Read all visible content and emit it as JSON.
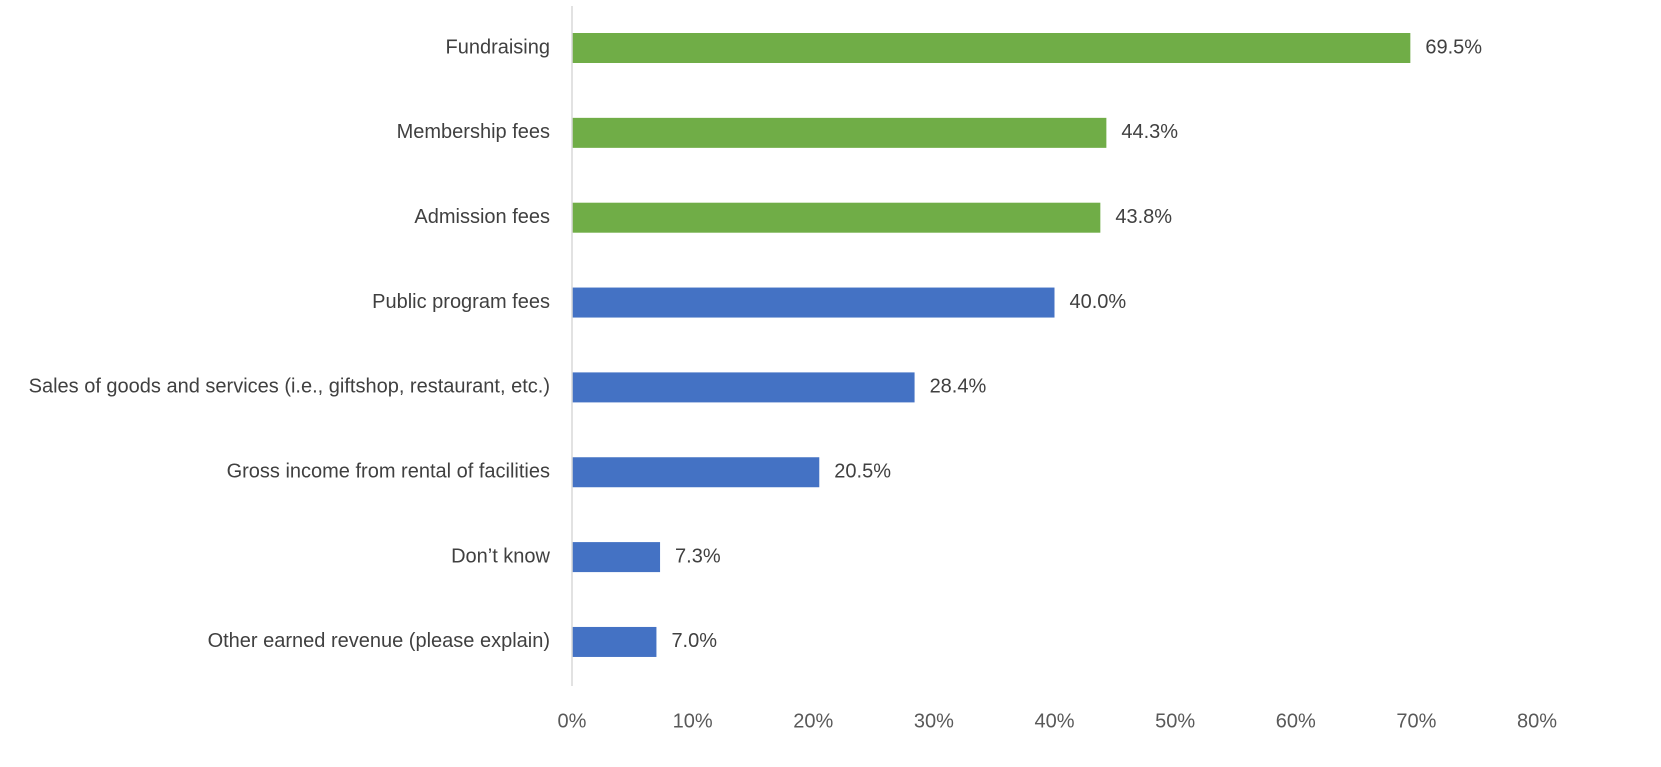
{
  "chart_data": {
    "type": "bar",
    "orientation": "horizontal",
    "title": "",
    "xlabel": "",
    "ylabel": "",
    "xlim": [
      0,
      80
    ],
    "x_ticks": [
      "0%",
      "10%",
      "20%",
      "30%",
      "40%",
      "50%",
      "60%",
      "70%",
      "80%"
    ],
    "grid": false,
    "legend": "none",
    "colors": {
      "green": "#70AD47",
      "blue": "#4472C4"
    },
    "bars": [
      {
        "label": "Fundraising",
        "value": 69.5,
        "value_label": "69.5%",
        "color": "#70AD47"
      },
      {
        "label": "Membership fees",
        "value": 44.3,
        "value_label": "44.3%",
        "color": "#70AD47"
      },
      {
        "label": "Admission fees",
        "value": 43.8,
        "value_label": "43.8%",
        "color": "#70AD47"
      },
      {
        "label": "Public program fees",
        "value": 40.0,
        "value_label": "40.0%",
        "color": "#4472C4"
      },
      {
        "label": "Sales of goods and services (i.e., giftshop, restaurant, etc.)",
        "value": 28.4,
        "value_label": "28.4%",
        "color": "#4472C4"
      },
      {
        "label": "Gross income from rental of facilities",
        "value": 20.5,
        "value_label": "20.5%",
        "color": "#4472C4"
      },
      {
        "label": "Don’t know",
        "value": 7.3,
        "value_label": "7.3%",
        "color": "#4472C4"
      },
      {
        "label": "Other earned revenue (please explain)",
        "value": 7.0,
        "value_label": "7.0%",
        "color": "#4472C4"
      }
    ]
  }
}
